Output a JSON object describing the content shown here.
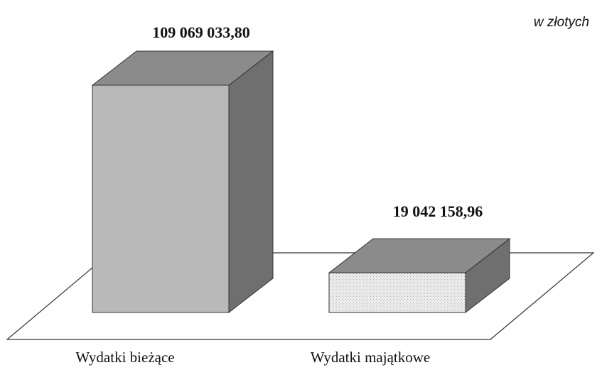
{
  "chart_data": {
    "type": "bar3d",
    "annotation": "w złotych",
    "categories": [
      "Wydatki bieżące",
      "Wydatki majątkowe"
    ],
    "values": [
      109069033.8,
      19042158.96
    ],
    "value_labels": [
      "109 069 033,80",
      "19 042 158,96"
    ],
    "colors": [
      "#b9b9b9",
      "#e9e9e9"
    ]
  }
}
